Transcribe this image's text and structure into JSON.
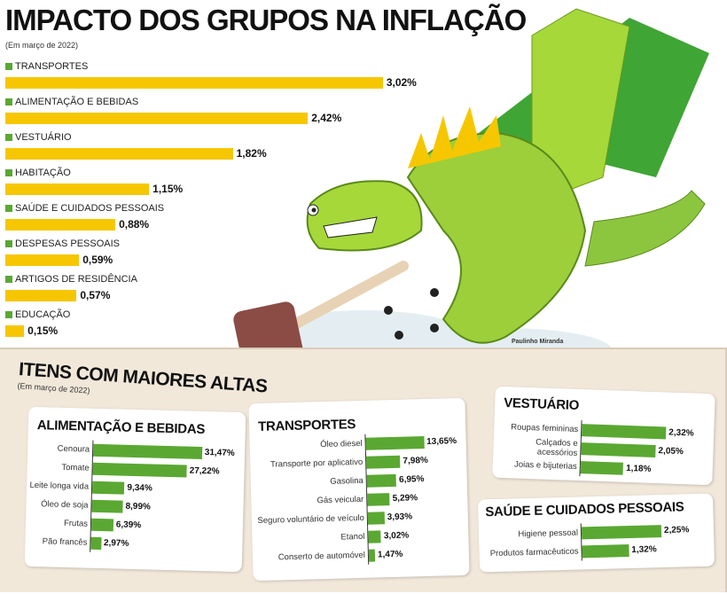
{
  "chart_data": [
    {
      "type": "bar",
      "orientation": "horizontal",
      "title": "IMPACTO DOS GRUPOS NA INFLAÇÃO",
      "subtitle": "(Em março de 2022)",
      "bar_color": "#f6c700",
      "legend_color": "#5aa832",
      "categories": [
        "TRANSPORTES",
        "ALIMENTAÇÃO E BEBIDAS",
        "VESTUÁRIO",
        "HABITAÇÃO",
        "SAÚDE E CUIDADOS PESSOAIS",
        "DESPESAS PESSOAIS",
        "ARTIGOS DE RESIDÊNCIA",
        "EDUCAÇÃO"
      ],
      "values": [
        3.02,
        2.42,
        1.82,
        1.15,
        0.88,
        0.59,
        0.57,
        0.15
      ],
      "labels": [
        "3,02%",
        "2,42%",
        "1,82%",
        "1,15%",
        "0,88%",
        "0,59%",
        "0,57%",
        "0,15%"
      ]
    },
    {
      "type": "bar",
      "orientation": "horizontal",
      "title": "ALIMENTAÇÃO E BEBIDAS",
      "bar_color": "#5aa832",
      "categories": [
        "Cenoura",
        "Tomate",
        "Leite longa vida",
        "Óleo de soja",
        "Frutas",
        "Pão francês"
      ],
      "values": [
        31.47,
        27.22,
        9.34,
        8.99,
        6.39,
        2.97
      ],
      "labels": [
        "31,47%",
        "27,22%",
        "9,34%",
        "8,99%",
        "6,39%",
        "2,97%"
      ]
    },
    {
      "type": "bar",
      "orientation": "horizontal",
      "title": "TRANSPORTES",
      "bar_color": "#5aa832",
      "categories": [
        "Óleo diesel",
        "Transporte por aplicativo",
        "Gasolina",
        "Gás veicular",
        "Seguro voluntário de veículo",
        "Etanol",
        "Conserto de automóvel"
      ],
      "values": [
        13.65,
        7.98,
        6.95,
        5.29,
        3.93,
        3.02,
        1.47
      ],
      "labels": [
        "13,65%",
        "7,98%",
        "6,95%",
        "5,29%",
        "3,93%",
        "3,02%",
        "1,47%"
      ]
    },
    {
      "type": "bar",
      "orientation": "horizontal",
      "title": "VESTUÁRIO",
      "bar_color": "#5aa832",
      "categories": [
        "Roupas femininas",
        "Calçados e acessórios",
        "Joias e bijuterias"
      ],
      "values": [
        2.32,
        2.05,
        1.18
      ],
      "labels": [
        "2,32%",
        "2,05%",
        "1,18%"
      ]
    },
    {
      "type": "bar",
      "orientation": "horizontal",
      "title": "SAÚDE E CUIDADOS PESSOAIS",
      "bar_color": "#5aa832",
      "categories": [
        "Higiene pessoal",
        "Produtos farmacêuticos"
      ],
      "values": [
        2.25,
        1.32
      ],
      "labels": [
        "2,25%",
        "1,32%"
      ]
    }
  ],
  "section": {
    "title": "ITENS COM MAIORES ALTAS",
    "subtitle": "(Em março de 2022)"
  },
  "illustration_credit": "Paulinho Miranda"
}
